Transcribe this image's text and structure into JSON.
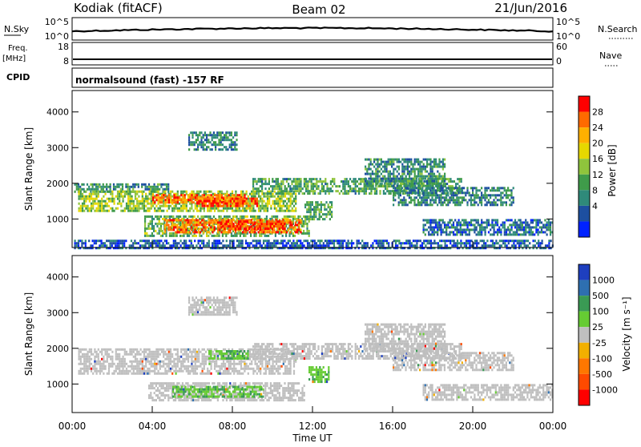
{
  "header": {
    "station": "Kodiak (fitACF)",
    "beam": "Beam 02",
    "date": "21/Jun/2016"
  },
  "strips": {
    "nsky_label": "N.Sky",
    "nsearch_label": "N.Search",
    "nsky_ticks": [
      "10^5",
      "10^0"
    ],
    "nsearch_ticks": [
      "10^5",
      "10^0"
    ],
    "freq_label_line1": "Freq.",
    "freq_label_line2": "[MHz]",
    "freq_ticks": [
      "18",
      "8"
    ],
    "nave_label": "Nave",
    "nave_ticks": [
      "60",
      "0"
    ],
    "cpid_label": "CPID",
    "cpid_text": "normalsound (fast) -157 RF"
  },
  "chart_data": [
    {
      "type": "heatmap",
      "name": "power",
      "ylabel": "Slant Range [km]",
      "y_ticks": [
        1000,
        2000,
        3000,
        4000
      ],
      "ylim": [
        200,
        4600
      ],
      "colorbar_label": "Power [dB]",
      "colorbar_ticks": [
        "28",
        "24",
        "20",
        "16",
        "12",
        "8",
        "4"
      ],
      "colorbar_colors": [
        "#ff0000",
        "#ff6a00",
        "#ffb000",
        "#e6d800",
        "#8fc43c",
        "#3f9b4a",
        "#2f8a7a",
        "#1d4fa0",
        "#0022ff"
      ],
      "bands": [
        {
          "t0": 0.1,
          "t1": 4.8,
          "r0": 1750,
          "r1": 2000,
          "level": 10
        },
        {
          "t0": 0.3,
          "t1": 11.2,
          "r0": 1250,
          "r1": 1800,
          "level": 16
        },
        {
          "t0": 4.0,
          "t1": 8.6,
          "r0": 1450,
          "r1": 1700,
          "level": 26
        },
        {
          "t0": 6.2,
          "t1": 9.2,
          "r0": 1350,
          "r1": 1600,
          "level": 28
        },
        {
          "t0": 3.6,
          "t1": 11.8,
          "r0": 550,
          "r1": 1100,
          "level": 14
        },
        {
          "t0": 4.6,
          "t1": 11.4,
          "r0": 650,
          "r1": 1000,
          "level": 26
        },
        {
          "t0": 7.4,
          "t1": 10.6,
          "r0": 720,
          "r1": 960,
          "level": 29
        },
        {
          "t0": 9.0,
          "t1": 19.4,
          "r0": 1700,
          "r1": 2150,
          "level": 12
        },
        {
          "t0": 14.6,
          "t1": 18.6,
          "r0": 1900,
          "r1": 2700,
          "level": 10
        },
        {
          "t0": 16.0,
          "t1": 22.0,
          "r0": 1400,
          "r1": 1900,
          "level": 9
        },
        {
          "t0": 17.5,
          "t1": 24.0,
          "r0": 550,
          "r1": 1000,
          "level": 7
        },
        {
          "t0": 0.1,
          "t1": 24.0,
          "r0": 200,
          "r1": 420,
          "level": 6
        },
        {
          "t0": 5.8,
          "t1": 8.2,
          "r0": 2950,
          "r1": 3450,
          "level": 9
        },
        {
          "t0": 11.6,
          "t1": 13.0,
          "r0": 1000,
          "r1": 1500,
          "level": 12
        }
      ]
    },
    {
      "type": "heatmap",
      "name": "velocity",
      "ylabel": "Slant Range [km]",
      "y_ticks": [
        1000,
        2000,
        3000,
        4000
      ],
      "ylim": [
        200,
        4600
      ],
      "colorbar_label": "Velocity [m s⁻¹]",
      "colorbar_ticks": [
        "1000",
        "500",
        "100",
        "25",
        "-25",
        "-100",
        "-500",
        "-1000"
      ],
      "colorbar_colors": [
        "#1e3fbf",
        "#2e6fb0",
        "#3a9a54",
        "#66cc33",
        "#bfbfbf",
        "#f2b000",
        "#ff7700",
        "#ff4a00",
        "#ff0000"
      ],
      "bands": [
        {
          "t0": 0.3,
          "t1": 11.2,
          "r0": 1300,
          "r1": 2000,
          "level": 0
        },
        {
          "t0": 6.8,
          "t1": 8.8,
          "r0": 1700,
          "r1": 1950,
          "level": 60
        },
        {
          "t0": 3.8,
          "t1": 11.6,
          "r0": 550,
          "r1": 1050,
          "level": 0
        },
        {
          "t0": 5.0,
          "t1": 9.5,
          "r0": 650,
          "r1": 950,
          "level": 60
        },
        {
          "t0": 9.0,
          "t1": 19.4,
          "r0": 1700,
          "r1": 2150,
          "level": 0
        },
        {
          "t0": 14.6,
          "t1": 18.6,
          "r0": 1900,
          "r1": 2700,
          "level": 0
        },
        {
          "t0": 16.0,
          "t1": 22.0,
          "r0": 1400,
          "r1": 1900,
          "level": 0
        },
        {
          "t0": 17.5,
          "t1": 24.0,
          "r0": 550,
          "r1": 1000,
          "level": 0
        },
        {
          "t0": 11.8,
          "t1": 12.8,
          "r0": 1050,
          "r1": 1500,
          "level": 70
        },
        {
          "t0": 5.8,
          "t1": 8.2,
          "r0": 2950,
          "r1": 3450,
          "level": 0
        }
      ]
    }
  ],
  "x_axis": {
    "ticks": [
      "00:00",
      "04:00",
      "08:00",
      "12:00",
      "16:00",
      "20:00",
      "00:00"
    ],
    "label": "Time UT",
    "range_hours": [
      0,
      24
    ]
  }
}
